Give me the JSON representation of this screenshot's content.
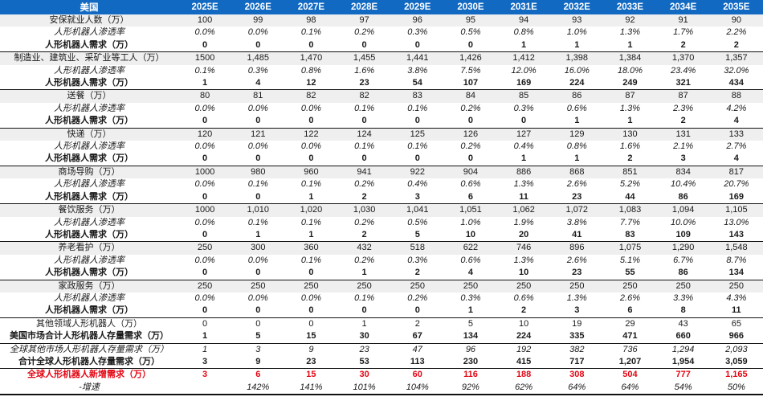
{
  "colors": {
    "header_bg": "#1169C2",
    "header_fg": "#FFFFFF",
    "category_row_bg": "#EFEFEF",
    "accent_red": "#E30613",
    "rule": "#111111"
  },
  "table": {
    "corner_label": "美国",
    "years": [
      "2025E",
      "2026E",
      "2027E",
      "2028E",
      "2029E",
      "2030E",
      "2031E",
      "2032E",
      "2033E",
      "2034E",
      "2035E"
    ],
    "rows": [
      {
        "label": "安保就业人数（万）",
        "style": "category",
        "values": [
          "100",
          "99",
          "98",
          "97",
          "96",
          "95",
          "94",
          "93",
          "92",
          "91",
          "90"
        ]
      },
      {
        "label": "人形机器人渗透率",
        "style": "penetration",
        "values": [
          "0.0%",
          "0.0%",
          "0.1%",
          "0.2%",
          "0.3%",
          "0.5%",
          "0.8%",
          "1.0%",
          "1.3%",
          "1.7%",
          "2.2%"
        ]
      },
      {
        "label": "人形机器人需求（万）",
        "style": "demand",
        "values": [
          "0",
          "0",
          "0",
          "0",
          "0",
          "0",
          "1",
          "1",
          "1",
          "2",
          "2"
        ]
      },
      {
        "label": "制造业、建筑业、采矿业等工人（万）",
        "style": "category",
        "values": [
          "1500",
          "1,485",
          "1,470",
          "1,455",
          "1,441",
          "1,426",
          "1,412",
          "1,398",
          "1,384",
          "1,370",
          "1,357"
        ]
      },
      {
        "label": "人形机器人渗透率",
        "style": "penetration",
        "values": [
          "0.1%",
          "0.3%",
          "0.8%",
          "1.6%",
          "3.8%",
          "7.5%",
          "12.0%",
          "16.0%",
          "18.0%",
          "23.4%",
          "32.0%"
        ]
      },
      {
        "label": "人形机器人需求（万）",
        "style": "demand",
        "values": [
          "1",
          "4",
          "12",
          "23",
          "54",
          "107",
          "169",
          "224",
          "249",
          "321",
          "434"
        ]
      },
      {
        "label": "送餐（万）",
        "style": "category",
        "values": [
          "80",
          "81",
          "82",
          "82",
          "83",
          "84",
          "85",
          "86",
          "87",
          "87",
          "88"
        ]
      },
      {
        "label": "人形机器人渗透率",
        "style": "penetration",
        "values": [
          "0.0%",
          "0.0%",
          "0.0%",
          "0.1%",
          "0.1%",
          "0.2%",
          "0.3%",
          "0.6%",
          "1.3%",
          "2.3%",
          "4.2%"
        ]
      },
      {
        "label": "人形机器人需求（万）",
        "style": "demand",
        "values": [
          "0",
          "0",
          "0",
          "0",
          "0",
          "0",
          "0",
          "1",
          "1",
          "2",
          "4"
        ]
      },
      {
        "label": "快递（万）",
        "style": "category",
        "values": [
          "120",
          "121",
          "122",
          "124",
          "125",
          "126",
          "127",
          "129",
          "130",
          "131",
          "133"
        ]
      },
      {
        "label": "人形机器人渗透率",
        "style": "penetration",
        "values": [
          "0.0%",
          "0.0%",
          "0.0%",
          "0.1%",
          "0.1%",
          "0.2%",
          "0.4%",
          "0.8%",
          "1.6%",
          "2.1%",
          "2.7%"
        ]
      },
      {
        "label": "人形机器人需求（万）",
        "style": "demand",
        "values": [
          "0",
          "0",
          "0",
          "0",
          "0",
          "0",
          "1",
          "1",
          "2",
          "3",
          "4"
        ]
      },
      {
        "label": "商场导购（万）",
        "style": "category",
        "values": [
          "1000",
          "980",
          "960",
          "941",
          "922",
          "904",
          "886",
          "868",
          "851",
          "834",
          "817"
        ]
      },
      {
        "label": "人形机器人渗透率",
        "style": "penetration",
        "values": [
          "0.0%",
          "0.1%",
          "0.1%",
          "0.2%",
          "0.4%",
          "0.6%",
          "1.3%",
          "2.6%",
          "5.2%",
          "10.4%",
          "20.7%"
        ]
      },
      {
        "label": "人形机器人需求（万）",
        "style": "demand",
        "values": [
          "0",
          "0",
          "1",
          "2",
          "3",
          "6",
          "11",
          "23",
          "44",
          "86",
          "169"
        ]
      },
      {
        "label": "餐饮服务（万）",
        "style": "category",
        "values": [
          "1000",
          "1,010",
          "1,020",
          "1,030",
          "1,041",
          "1,051",
          "1,062",
          "1,072",
          "1,083",
          "1,094",
          "1,105"
        ]
      },
      {
        "label": "人形机器人渗透率",
        "style": "penetration",
        "values": [
          "0.0%",
          "0.1%",
          "0.1%",
          "0.2%",
          "0.5%",
          "1.0%",
          "1.9%",
          "3.8%",
          "7.7%",
          "10.0%",
          "13.0%"
        ]
      },
      {
        "label": "人形机器人需求（万）",
        "style": "demand",
        "values": [
          "0",
          "1",
          "1",
          "2",
          "5",
          "10",
          "20",
          "41",
          "83",
          "109",
          "143"
        ]
      },
      {
        "label": "养老看护（万）",
        "style": "category",
        "values": [
          "250",
          "300",
          "360",
          "432",
          "518",
          "622",
          "746",
          "896",
          "1,075",
          "1,290",
          "1,548"
        ]
      },
      {
        "label": "人形机器人渗透率",
        "style": "penetration",
        "values": [
          "0.0%",
          "0.0%",
          "0.1%",
          "0.2%",
          "0.3%",
          "0.6%",
          "1.3%",
          "2.6%",
          "5.1%",
          "6.7%",
          "8.7%"
        ]
      },
      {
        "label": "人形机器人需求（万）",
        "style": "demand",
        "values": [
          "0",
          "0",
          "0",
          "1",
          "2",
          "4",
          "10",
          "23",
          "55",
          "86",
          "134"
        ]
      },
      {
        "label": "家政服务（万）",
        "style": "category",
        "values": [
          "250",
          "250",
          "250",
          "250",
          "250",
          "250",
          "250",
          "250",
          "250",
          "250",
          "250"
        ]
      },
      {
        "label": "人形机器人渗透率",
        "style": "penetration",
        "values": [
          "0.0%",
          "0.0%",
          "0.0%",
          "0.1%",
          "0.2%",
          "0.3%",
          "0.6%",
          "1.3%",
          "2.6%",
          "3.3%",
          "4.3%"
        ]
      },
      {
        "label": "人形机器人需求（万）",
        "style": "demand",
        "values": [
          "0",
          "0",
          "0",
          "0",
          "0",
          "1",
          "2",
          "3",
          "6",
          "8",
          "11"
        ]
      },
      {
        "label": "其他领域人形机器人（万）",
        "style": "other",
        "values": [
          "0",
          "0",
          "0",
          "1",
          "2",
          "5",
          "10",
          "19",
          "29",
          "43",
          "65"
        ]
      },
      {
        "label": "美国市场合计人形机器人存量需求（万）",
        "style": "us_total",
        "values": [
          "1",
          "5",
          "15",
          "30",
          "67",
          "134",
          "224",
          "335",
          "471",
          "660",
          "966"
        ]
      },
      {
        "label": "全球其他市场人形机器人存量需求（万）",
        "style": "global_other",
        "values": [
          "1",
          "3",
          "9",
          "23",
          "47",
          "96",
          "192",
          "382",
          "736",
          "1,294",
          "2,093"
        ]
      },
      {
        "label": "合计全球人形机器人存量需求（万）",
        "style": "global_total",
        "values": [
          "3",
          "9",
          "23",
          "53",
          "113",
          "230",
          "415",
          "717",
          "1,207",
          "1,954",
          "3,059"
        ]
      },
      {
        "label": "全球人形机器人新增需求（万）",
        "style": "new_demand",
        "values": [
          "3",
          "6",
          "15",
          "30",
          "60",
          "116",
          "188",
          "308",
          "504",
          "777",
          "1,165"
        ]
      },
      {
        "label": "-增速",
        "style": "growth",
        "values": [
          "",
          "142%",
          "141%",
          "101%",
          "104%",
          "92%",
          "62%",
          "64%",
          "64%",
          "54%",
          "50%"
        ]
      }
    ]
  }
}
